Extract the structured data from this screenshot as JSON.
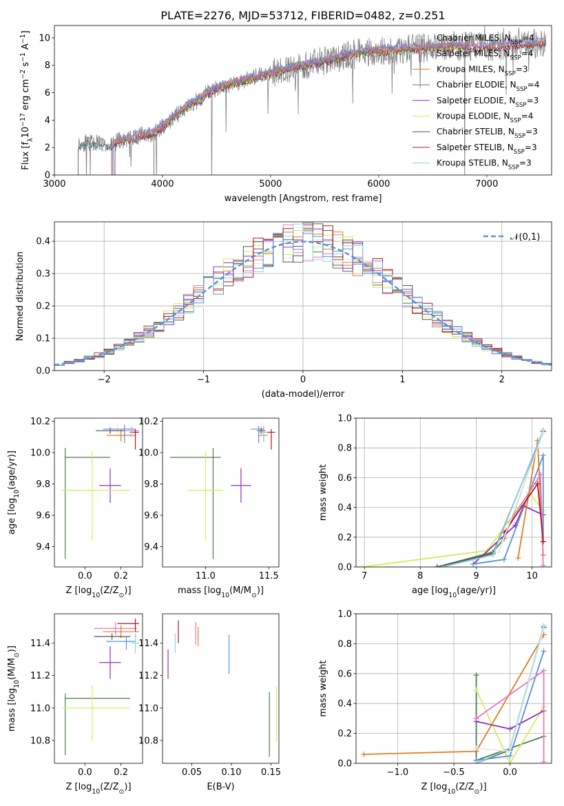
{
  "figure_title": "PLATE=2276, MJD=53712, FIBERID=0482, z=0.251",
  "colors": {
    "Chabrier MILES": "#e8e8e8",
    "Salpeter MILES": "#e377c2",
    "Kroupa MILES": "#e07b20",
    "Chabrier ELODIE": "#4b7d4b",
    "Salpeter ELODIE": "#8e2eb3",
    "Kroupa ELODIE": "#d4ec5a",
    "Chabrier STELIB": "#555555",
    "Salpeter STELIB": "#b2141c",
    "Kroupa STELIB": "#8fd2e0",
    "Blue model": "#5b8fd9",
    "gaussian": "#5b8fd9",
    "data": "#7f7f7f"
  },
  "chart_data": [
    {
      "id": "spectrum",
      "type": "line",
      "xlabel": "wavelength [Angstrom, rest frame]",
      "ylabel": "Flux [f$_\\lambda$10$^{-17}$ erg cm$^{-2}$ s$^{-1}$ A$^{-1}$]",
      "xlim": [
        3000,
        7600
      ],
      "ylim": [
        0,
        10.9
      ],
      "xticks": [
        3000,
        4000,
        5000,
        6000,
        7000
      ],
      "yticks": [
        0,
        2,
        4,
        6,
        8,
        10
      ],
      "legend": "top-right",
      "legend_entries": [
        "Chabrier MILES, N$_{SSP}$=4",
        "Salpeter MILES, N$_{SSP}$=4",
        "Kroupa MILES, N$_{SSP}$=3",
        "Chabrier ELODIE, N$_{SSP}$=4",
        "Salpeter ELODIE, N$_{SSP}$=3",
        "Kroupa ELODIE, N$_{SSP}$=4",
        "Chabrier STELIB, N$_{SSP}$=3",
        "Salpeter STELIB, N$_{SSP}$=3",
        "Kroupa STELIB, N$_{SSP}$=3"
      ],
      "continuum": {
        "x": [
          3220,
          3300,
          3400,
          3500,
          3600,
          3700,
          3800,
          3900,
          4000,
          4100,
          4200,
          4300,
          4400,
          4500,
          4700,
          4900,
          5100,
          5300,
          5500,
          5700,
          5900,
          6100,
          6300,
          6500,
          6700,
          6900,
          7100,
          7300,
          7550
        ],
        "y": [
          2.2,
          2.4,
          2.3,
          2.1,
          2.5,
          2.6,
          2.9,
          3.0,
          3.5,
          4.2,
          4.8,
          5.3,
          5.9,
          6.3,
          6.8,
          7.2,
          7.6,
          8.0,
          8.3,
          8.7,
          9.0,
          9.1,
          9.2,
          9.3,
          9.4,
          9.3,
          9.4,
          9.5,
          9.6
        ]
      }
    },
    {
      "id": "residuals",
      "type": "bar",
      "xlabel": "(data-model)/error",
      "ylabel": "Normed distribution",
      "xlim": [
        -2.5,
        2.5
      ],
      "ylim": [
        0,
        0.46
      ],
      "xticks": [
        -2,
        -1,
        0,
        1,
        2
      ],
      "yticks": [
        0.0,
        0.1,
        0.2,
        0.3,
        0.4
      ],
      "grid": true,
      "legend": "top-right",
      "gaussian_label": "$\\mathcal{N}(0,1)$",
      "bin_width": 0.1,
      "bin_edges_start": -2.5
    },
    {
      "id": "age_vs_Z",
      "type": "scatter",
      "xlabel": "Z [log$_{10}$(Z/Z$_\\odot$)]",
      "ylabel": "age  [log$_{10}$(age/yr)]",
      "xlim": [
        -0.17,
        0.32
      ],
      "ylim": [
        9.27,
        10.22
      ],
      "xticks": [
        0.0,
        0.2
      ],
      "yticks": [
        9.4,
        9.6,
        9.8,
        10.0,
        10.2
      ],
      "points": [
        {
          "model": "Chabrier MILES",
          "x": 0.18,
          "y": 10.14,
          "xerr": [
            0.1,
            0.1
          ],
          "yerr": [
            0.03,
            0.05
          ]
        },
        {
          "model": "Salpeter MILES",
          "x": 0.22,
          "y": 10.14,
          "xerr": [
            0.08,
            0.08
          ],
          "yerr": [
            0.04,
            0.04
          ]
        },
        {
          "model": "Kroupa MILES",
          "x": 0.2,
          "y": 10.11,
          "xerr": [
            0.08,
            0.08
          ],
          "yerr": [
            0.04,
            0.04
          ]
        },
        {
          "model": "Chabrier ELODIE",
          "x": -0.11,
          "y": 9.97,
          "xerr": [
            0.0,
            0.25
          ],
          "yerr": [
            0.65,
            0.06
          ]
        },
        {
          "model": "Salpeter ELODIE",
          "x": 0.14,
          "y": 9.79,
          "xerr": [
            0.06,
            0.06
          ],
          "yerr": [
            0.11,
            0.11
          ]
        },
        {
          "model": "Kroupa ELODIE",
          "x": 0.04,
          "y": 9.76,
          "xerr": [
            0.17,
            0.21
          ],
          "yerr": [
            0.32,
            0.25
          ]
        },
        {
          "model": "Chabrier STELIB",
          "x": 0.14,
          "y": 10.14,
          "xerr": [
            0.08,
            0.08
          ],
          "yerr": [
            0.02,
            0.02
          ]
        },
        {
          "model": "Salpeter STELIB",
          "x": 0.28,
          "y": 10.13,
          "xerr": [
            0.03,
            0.02
          ],
          "yerr": [
            0.11,
            0.02
          ]
        },
        {
          "model": "Kroupa STELIB",
          "x": 0.26,
          "y": 10.15,
          "xerr": [
            0.02,
            0.02
          ],
          "yerr": [
            0.05,
            0.02
          ]
        },
        {
          "model": "Blue model",
          "x": 0.22,
          "y": 10.15,
          "xerr": [
            0.12,
            0.06
          ],
          "yerr": [
            0.09,
            0.02
          ]
        }
      ]
    },
    {
      "id": "age_vs_mass",
      "type": "scatter",
      "xlabel": "mass [log$_{10}$(M/M$_\\odot$)]",
      "ylabel": "",
      "xlim": [
        10.66,
        11.58
      ],
      "ylim": [
        9.27,
        10.22
      ],
      "xticks": [
        11.0,
        11.5
      ],
      "yticks": [
        9.4,
        9.6,
        9.8,
        10.0,
        10.2
      ],
      "points": [
        {
          "model": "Chabrier MILES",
          "x": 11.44,
          "y": 10.14,
          "xerr": [
            0.04,
            0.04
          ],
          "yerr": [
            0.03,
            0.05
          ]
        },
        {
          "model": "Salpeter MILES",
          "x": 11.46,
          "y": 10.13,
          "xerr": [
            0.03,
            0.03
          ],
          "yerr": [
            0.04,
            0.04
          ]
        },
        {
          "model": "Kroupa MILES",
          "x": 11.46,
          "y": 10.11,
          "xerr": [
            0.04,
            0.03
          ],
          "yerr": [
            0.04,
            0.04
          ]
        },
        {
          "model": "Chabrier ELODIE",
          "x": 11.06,
          "y": 9.97,
          "xerr": [
            0.34,
            0.06
          ],
          "yerr": [
            0.65,
            0.06
          ]
        },
        {
          "model": "Salpeter ELODIE",
          "x": 11.28,
          "y": 9.79,
          "xerr": [
            0.08,
            0.08
          ],
          "yerr": [
            0.11,
            0.11
          ]
        },
        {
          "model": "Kroupa ELODIE",
          "x": 11.0,
          "y": 9.76,
          "xerr": [
            0.14,
            0.14
          ],
          "yerr": [
            0.32,
            0.25
          ]
        },
        {
          "model": "Chabrier STELIB",
          "x": 11.44,
          "y": 10.14,
          "xerr": [
            0.03,
            0.03
          ],
          "yerr": [
            0.02,
            0.02
          ]
        },
        {
          "model": "Salpeter STELIB",
          "x": 11.52,
          "y": 10.13,
          "xerr": [
            0.03,
            0.03
          ],
          "yerr": [
            0.11,
            0.02
          ]
        },
        {
          "model": "Kroupa STELIB",
          "x": 11.46,
          "y": 10.13,
          "xerr": [
            0.02,
            0.02
          ],
          "yerr": [
            0.05,
            0.02
          ]
        },
        {
          "model": "Blue model",
          "x": 11.42,
          "y": 10.15,
          "xerr": [
            0.06,
            0.04
          ],
          "yerr": [
            0.09,
            0.02
          ]
        }
      ]
    },
    {
      "id": "weight_vs_age",
      "type": "line",
      "xlabel": "age  [log$_{10}$(age/yr)]",
      "ylabel": "mass weight",
      "xlim": [
        6.85,
        10.35
      ],
      "ylim": [
        0,
        1
      ],
      "xticks": [
        7,
        8,
        9,
        10
      ],
      "yticks": [
        0.0,
        0.2,
        0.4,
        0.6,
        0.8,
        1.0
      ],
      "grid": true,
      "series": [
        {
          "model": "Kroupa ELODIE",
          "x": [
            6.95,
            9.2,
            9.95,
            10.2
          ],
          "y": [
            0.0,
            0.11,
            0.5,
            0.38
          ]
        },
        {
          "model": "Chabrier ELODIE",
          "x": [
            8.3,
            9.3,
            9.5,
            10.2
          ],
          "y": [
            0.0,
            0.1,
            0.19,
            0.91
          ]
        },
        {
          "model": "Salpeter ELODIE",
          "x": [
            8.95,
            9.7,
            9.85,
            10.2
          ],
          "y": [
            0.02,
            0.28,
            0.41,
            0.35
          ]
        },
        {
          "model": "Blue model",
          "x": [
            8.95,
            9.5,
            10.2,
            10.2
          ],
          "y": [
            0.02,
            0.05,
            0.75,
            0.17
          ]
        },
        {
          "model": "Kroupa MILES",
          "x": [
            9.75,
            10.1,
            10.2
          ],
          "y": [
            0.06,
            0.85,
            0.08
          ]
        },
        {
          "model": "Salpeter MILES",
          "x": [
            9.6,
            10.15,
            10.2
          ],
          "y": [
            0.3,
            0.62,
            0.01
          ]
        },
        {
          "model": "Chabrier STELIB",
          "x": [
            8.3,
            9.3,
            10.2
          ],
          "y": [
            0.0,
            0.09,
            0.91
          ]
        },
        {
          "model": "Salpeter STELIB",
          "x": [
            9.5,
            10.1,
            10.2
          ],
          "y": [
            0.23,
            0.56,
            0.17
          ]
        },
        {
          "model": "Kroupa STELIB",
          "x": [
            8.4,
            9.3,
            10.2
          ],
          "y": [
            0.0,
            0.08,
            0.92
          ]
        },
        {
          "model": "Chabrier MILES",
          "x": [
            9.4,
            10.2
          ],
          "y": [
            0.1,
            0.9
          ]
        }
      ]
    },
    {
      "id": "mass_vs_Z",
      "type": "scatter",
      "xlabel": "Z [log$_{10}$(Z/Z$_\\odot$)]",
      "ylabel": "mass [log$_{10}$(M/M$_\\odot$)]",
      "xlim": [
        -0.17,
        0.32
      ],
      "ylim": [
        10.66,
        11.58
      ],
      "xticks": [
        0.0,
        0.2
      ],
      "yticks": [
        10.8,
        11.0,
        11.2,
        11.4
      ],
      "points": [
        {
          "model": "Chabrier MILES",
          "x": 0.25,
          "y": 11.44,
          "xerr": [
            0.05,
            0.05
          ],
          "yerr": [
            0.05,
            0.05
          ]
        },
        {
          "model": "Salpeter MILES",
          "x": 0.17,
          "y": 11.49,
          "xerr": [
            0.12,
            0.12
          ],
          "yerr": [
            0.04,
            0.04
          ]
        },
        {
          "model": "Kroupa MILES",
          "x": 0.2,
          "y": 11.47,
          "xerr": [
            0.1,
            0.1
          ],
          "yerr": [
            0.04,
            0.04
          ]
        },
        {
          "model": "Chabrier ELODIE",
          "x": -0.11,
          "y": 11.06,
          "xerr": [
            0.0,
            0.36
          ],
          "yerr": [
            0.35,
            0.03
          ]
        },
        {
          "model": "Salpeter ELODIE",
          "x": 0.14,
          "y": 11.28,
          "xerr": [
            0.06,
            0.06
          ],
          "yerr": [
            0.1,
            0.1
          ]
        },
        {
          "model": "Kroupa ELODIE",
          "x": 0.04,
          "y": 11.0,
          "xerr": [
            0.17,
            0.21
          ],
          "yerr": [
            0.2,
            0.14
          ]
        },
        {
          "model": "Chabrier STELIB",
          "x": 0.15,
          "y": 11.44,
          "xerr": [
            0.1,
            0.1
          ],
          "yerr": [
            0.02,
            0.02
          ]
        },
        {
          "model": "Salpeter STELIB",
          "x": 0.28,
          "y": 11.52,
          "xerr": [
            0.1,
            0.02
          ],
          "yerr": [
            0.05,
            0.03
          ]
        },
        {
          "model": "Kroupa STELIB",
          "x": 0.28,
          "y": 11.4,
          "xerr": [
            0.02,
            0.02
          ],
          "yerr": [
            0.06,
            0.06
          ]
        },
        {
          "model": "Blue model",
          "x": 0.23,
          "y": 11.41,
          "xerr": [
            0.11,
            0.05
          ],
          "yerr": [
            0.05,
            0.03
          ]
        }
      ]
    },
    {
      "id": "mass_vs_EBV",
      "type": "scatter",
      "xlabel": "E(B-V)",
      "ylabel": "",
      "xlim": [
        0.013,
        0.16
      ],
      "ylim": [
        10.66,
        11.58
      ],
      "xticks": [
        0.05,
        0.1,
        0.15
      ],
      "yticks": [
        10.8,
        11.0,
        11.2,
        11.4
      ],
      "points": [
        {
          "model": "Salpeter ELODIE",
          "x": 0.02,
          "y": 11.27,
          "xerr": [
            0,
            0
          ],
          "yerr": [
            0.09,
            0.09
          ]
        },
        {
          "model": "Kroupa STELIB",
          "x": 0.029,
          "y": 11.4,
          "xerr": [
            0,
            0
          ],
          "yerr": [
            0.06,
            0.06
          ]
        },
        {
          "model": "Salpeter STELIB",
          "x": 0.033,
          "y": 11.47,
          "xerr": [
            0,
            0
          ],
          "yerr": [
            0.07,
            0.07
          ]
        },
        {
          "model": "Salpeter MILES",
          "x": 0.055,
          "y": 11.46,
          "xerr": [
            0,
            0
          ],
          "yerr": [
            0.07,
            0.07
          ]
        },
        {
          "model": "Kroupa MILES",
          "x": 0.058,
          "y": 11.44,
          "xerr": [
            0,
            0
          ],
          "yerr": [
            0.06,
            0.06
          ]
        },
        {
          "model": "Blue model",
          "x": 0.097,
          "y": 11.33,
          "xerr": [
            0,
            0
          ],
          "yerr": [
            0.12,
            0.12
          ]
        },
        {
          "model": "Chabrier ELODIE",
          "x": 0.148,
          "y": 10.9,
          "xerr": [
            0,
            0
          ],
          "yerr": [
            0.2,
            0.2
          ]
        },
        {
          "model": "Kroupa ELODIE",
          "x": 0.157,
          "y": 10.96,
          "xerr": [
            0,
            0
          ],
          "yerr": [
            0.17,
            0.17
          ]
        }
      ]
    },
    {
      "id": "weight_vs_Z",
      "type": "line",
      "xlabel": "Z [log$_{10}$(Z/Z$_\\odot$)]",
      "ylabel": "mass weight",
      "xlim": [
        -1.37,
        0.37
      ],
      "ylim": [
        0,
        1
      ],
      "xticks": [
        -1.0,
        -0.5,
        0.0
      ],
      "yticks": [
        0.0,
        0.2,
        0.4,
        0.6,
        0.8,
        1.0
      ],
      "grid": true,
      "series": [
        {
          "model": "Kroupa MILES",
          "x": [
            -1.3,
            -0.3,
            0.3
          ],
          "y": [
            0.06,
            0.08,
            0.86
          ]
        },
        {
          "model": "Chabrier ELODIE",
          "x": [
            -0.3,
            -0.3,
            0.3
          ],
          "y": [
            0.59,
            0.02,
            0.18
          ]
        },
        {
          "model": "Kroupa ELODIE",
          "x": [
            -0.3,
            0.0,
            0.3
          ],
          "y": [
            0.49,
            0.0,
            0.38
          ]
        },
        {
          "model": "Salpeter ELODIE",
          "x": [
            -0.3,
            0.0,
            0.3
          ],
          "y": [
            0.28,
            0.23,
            0.35
          ]
        },
        {
          "model": "Blue model",
          "x": [
            -0.3,
            0.0,
            0.3
          ],
          "y": [
            0.02,
            0.05,
            0.75
          ]
        },
        {
          "model": "Salpeter MILES",
          "x": [
            -0.3,
            0.3,
            0.3
          ],
          "y": [
            0.3,
            0.62,
            0.01
          ]
        },
        {
          "model": "Chabrier STELIB",
          "x": [
            -0.3,
            0.0,
            0.3
          ],
          "y": [
            0.0,
            0.09,
            0.91
          ]
        },
        {
          "model": "Kroupa STELIB",
          "x": [
            -0.3,
            0.0,
            0.3
          ],
          "y": [
            0.0,
            0.1,
            0.92
          ]
        },
        {
          "model": "Chabrier MILES",
          "x": [
            -0.3,
            0.0,
            0.3
          ],
          "y": [
            0.1,
            0.08,
            0.9
          ]
        }
      ]
    }
  ]
}
